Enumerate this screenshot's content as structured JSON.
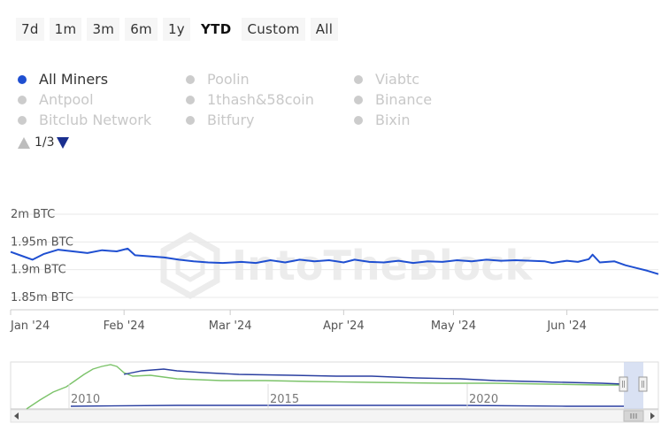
{
  "range_buttons": [
    {
      "label": "7d",
      "active": false
    },
    {
      "label": "1m",
      "active": false
    },
    {
      "label": "3m",
      "active": false
    },
    {
      "label": "6m",
      "active": false
    },
    {
      "label": "1y",
      "active": false
    },
    {
      "label": "YTD",
      "active": true
    },
    {
      "label": "Custom",
      "active": false
    },
    {
      "label": "All",
      "active": false
    }
  ],
  "legend": {
    "items": [
      {
        "label": "All Miners",
        "active": true
      },
      {
        "label": "Poolin",
        "active": false
      },
      {
        "label": "Viabtc",
        "active": false
      },
      {
        "label": "Antpool",
        "active": false
      },
      {
        "label": "1thash&58coin",
        "active": false
      },
      {
        "label": "Binance",
        "active": false
      },
      {
        "label": "Bitclub Network",
        "active": false
      },
      {
        "label": "Bitfury",
        "active": false
      },
      {
        "label": "Bixin",
        "active": false
      }
    ],
    "page": "1/3"
  },
  "watermark": "IntoTheBlock",
  "colors": {
    "series": "#1f4fd1",
    "navigator_green": "#7cc36a",
    "navigator_blue": "#2a3fa0",
    "inactive": "#cccccc"
  },
  "chart_data": {
    "type": "line",
    "title": "",
    "xlabel": "",
    "ylabel": "",
    "y_ticks": [
      {
        "value": 2.0,
        "label": "2m BTC"
      },
      {
        "value": 1.95,
        "label": "1.95m BTC"
      },
      {
        "value": 1.9,
        "label": "1.9m BTC"
      },
      {
        "value": 1.85,
        "label": "1.85m BTC"
      }
    ],
    "ylim": [
      1.85,
      2.0
    ],
    "x_range": [
      "2024-01-01",
      "2024-06-26"
    ],
    "x_ticks": [
      {
        "date": "2024-01-01",
        "label": "Jan '24"
      },
      {
        "date": "2024-02-01",
        "label": "Feb '24"
      },
      {
        "date": "2024-03-01",
        "label": "Mar '24"
      },
      {
        "date": "2024-04-01",
        "label": "Apr '24"
      },
      {
        "date": "2024-05-01",
        "label": "May '24"
      },
      {
        "date": "2024-06-01",
        "label": "Jun '24"
      }
    ],
    "series": [
      {
        "values": [
          [
            "2024-01-01",
            1.932
          ],
          [
            "2024-01-04",
            1.925
          ],
          [
            "2024-01-07",
            1.918
          ],
          [
            "2024-01-10",
            1.928
          ],
          [
            "2024-01-14",
            1.936
          ],
          [
            "2024-01-18",
            1.933
          ],
          [
            "2024-01-22",
            1.93
          ],
          [
            "2024-01-26",
            1.935
          ],
          [
            "2024-01-30",
            1.933
          ],
          [
            "2024-02-02",
            1.938
          ],
          [
            "2024-02-04",
            1.926
          ],
          [
            "2024-02-08",
            1.924
          ],
          [
            "2024-02-12",
            1.922
          ],
          [
            "2024-02-16",
            1.918
          ],
          [
            "2024-02-20",
            1.915
          ],
          [
            "2024-02-24",
            1.913
          ],
          [
            "2024-02-28",
            1.912
          ],
          [
            "2024-03-04",
            1.914
          ],
          [
            "2024-03-08",
            1.912
          ],
          [
            "2024-03-12",
            1.917
          ],
          [
            "2024-03-16",
            1.913
          ],
          [
            "2024-03-20",
            1.918
          ],
          [
            "2024-03-24",
            1.915
          ],
          [
            "2024-03-28",
            1.917
          ],
          [
            "2024-04-01",
            1.913
          ],
          [
            "2024-04-04",
            1.918
          ],
          [
            "2024-04-08",
            1.914
          ],
          [
            "2024-04-12",
            1.913
          ],
          [
            "2024-04-16",
            1.916
          ],
          [
            "2024-04-20",
            1.912
          ],
          [
            "2024-04-24",
            1.915
          ],
          [
            "2024-04-28",
            1.914
          ],
          [
            "2024-05-02",
            1.917
          ],
          [
            "2024-05-06",
            1.915
          ],
          [
            "2024-05-10",
            1.918
          ],
          [
            "2024-05-14",
            1.916
          ],
          [
            "2024-05-18",
            1.917
          ],
          [
            "2024-05-22",
            1.916
          ],
          [
            "2024-05-26",
            1.915
          ],
          [
            "2024-05-28",
            1.912
          ],
          [
            "2024-06-01",
            1.916
          ],
          [
            "2024-06-04",
            1.914
          ],
          [
            "2024-06-07",
            1.919
          ],
          [
            "2024-06-08",
            1.927
          ],
          [
            "2024-06-10",
            1.913
          ],
          [
            "2024-06-14",
            1.915
          ],
          [
            "2024-06-17",
            1.908
          ],
          [
            "2024-06-20",
            1.903
          ],
          [
            "2024-06-23",
            1.898
          ],
          [
            "2024-06-26",
            1.892
          ]
        ]
      }
    ],
    "navigator": {
      "x_ticks": [
        "2010",
        "2015",
        "2020"
      ]
    }
  }
}
